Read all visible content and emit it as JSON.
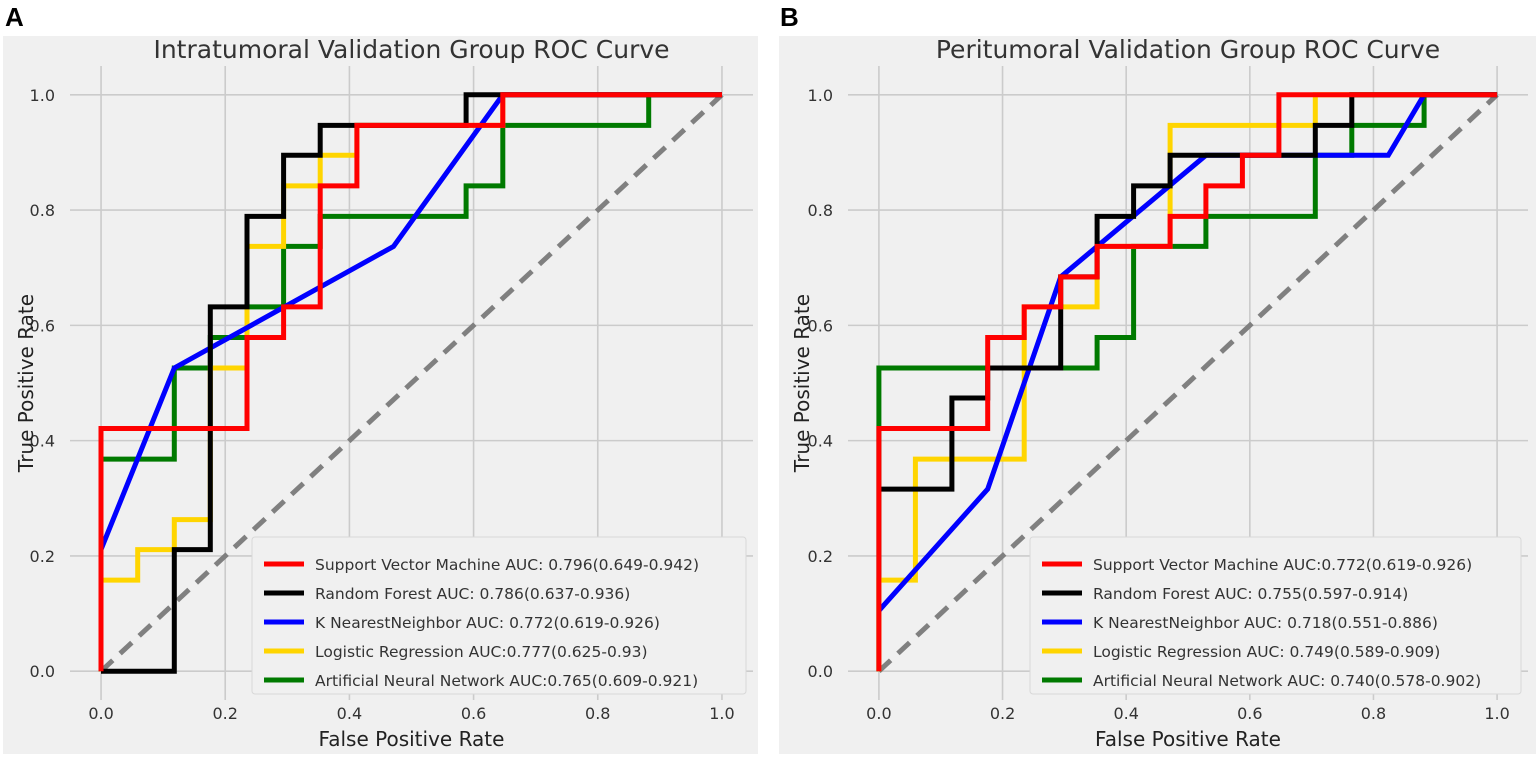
{
  "panels": [
    {
      "letter": "A"
    },
    {
      "letter": "B"
    }
  ],
  "colors": {
    "svm": "#ff0000",
    "rf": "#000000",
    "knn": "#0000ff",
    "lr": "#ffd500",
    "ann": "#007a00",
    "diagonal": "#808080",
    "plot_bg": "#f0f0f0",
    "grid": "#cbcbcb"
  },
  "chart_data": [
    {
      "type": "line",
      "title": "Intratumoral Validation Group ROC Curve",
      "xlabel": "False Positive Rate",
      "ylabel": "True Positive Rate",
      "xlim": [
        -0.05,
        1.05
      ],
      "ylim": [
        -0.05,
        1.05
      ],
      "xticks": [
        0.0,
        0.2,
        0.4,
        0.6,
        0.8,
        1.0
      ],
      "yticks": [
        0.0,
        0.2,
        0.4,
        0.6,
        0.8,
        1.0
      ],
      "xtick_labels": [
        "0.0",
        "0.2",
        "0.4",
        "0.6",
        "0.8",
        "1.0"
      ],
      "ytick_labels": [
        "0.0",
        "0.2",
        "0.4",
        "0.6",
        "0.8",
        "1.0"
      ],
      "grid": true,
      "legend_position": "bottom-right",
      "diagonal": {
        "x": [
          0,
          1
        ],
        "y": [
          0,
          1
        ]
      },
      "series": [
        {
          "key": "svm",
          "name": "Support Vector Machine AUC: 0.796(0.649-0.942)",
          "x": [
            0,
            0,
            0.235,
            0.235,
            0.294,
            0.294,
            0.353,
            0.353,
            0.412,
            0.412,
            0.647,
            0.647,
            1.0
          ],
          "y": [
            0,
            0.421,
            0.421,
            0.579,
            0.579,
            0.632,
            0.632,
            0.842,
            0.842,
            0.947,
            0.947,
            1.0,
            1.0
          ]
        },
        {
          "key": "rf",
          "name": "Random Forest AUC: 0.786(0.637-0.936)",
          "x": [
            0,
            0.118,
            0.118,
            0.176,
            0.176,
            0.235,
            0.235,
            0.294,
            0.294,
            0.353,
            0.353,
            0.412,
            0.412,
            0.588,
            0.588,
            1.0
          ],
          "y": [
            0,
            0,
            0.211,
            0.211,
            0.632,
            0.632,
            0.789,
            0.789,
            0.895,
            0.895,
            0.947,
            0.947,
            0.947,
            0.947,
            1.0,
            1.0
          ]
        },
        {
          "key": "knn",
          "name": "K NearestNeighbor AUC: 0.772(0.619-0.926)",
          "x": [
            0,
            0.118,
            0.471,
            0.647,
            1.0
          ],
          "y": [
            0.211,
            0.526,
            0.737,
            1.0,
            1.0
          ]
        },
        {
          "key": "lr",
          "name": "Logistic Regression AUC:0.777(0.625-0.93)",
          "x": [
            0,
            0,
            0.059,
            0.059,
            0.118,
            0.118,
            0.176,
            0.176,
            0.235,
            0.235,
            0.294,
            0.294,
            0.353,
            0.353,
            0.412,
            0.412,
            0.647,
            0.647,
            1.0
          ],
          "y": [
            0,
            0.158,
            0.158,
            0.211,
            0.211,
            0.263,
            0.263,
            0.526,
            0.526,
            0.737,
            0.737,
            0.842,
            0.842,
            0.895,
            0.895,
            0.947,
            0.947,
            1.0,
            1.0
          ]
        },
        {
          "key": "ann",
          "name": "Artificial Neural Network AUC:0.765(0.609-0.921)",
          "x": [
            0,
            0,
            0.118,
            0.118,
            0.176,
            0.176,
            0.235,
            0.235,
            0.294,
            0.294,
            0.353,
            0.353,
            0.588,
            0.588,
            0.647,
            0.647,
            0.882,
            0.882,
            1.0
          ],
          "y": [
            0,
            0.368,
            0.368,
            0.526,
            0.526,
            0.579,
            0.579,
            0.632,
            0.632,
            0.737,
            0.737,
            0.789,
            0.789,
            0.842,
            0.842,
            0.947,
            0.947,
            1.0,
            1.0
          ]
        }
      ]
    },
    {
      "type": "line",
      "title": "Peritumoral Validation Group ROC Curve",
      "xlabel": "False Positive Rate",
      "ylabel": "True Positive Rate",
      "xlim": [
        -0.05,
        1.05
      ],
      "ylim": [
        -0.05,
        1.05
      ],
      "xticks": [
        0.0,
        0.2,
        0.4,
        0.6,
        0.8,
        1.0
      ],
      "yticks": [
        0.0,
        0.2,
        0.4,
        0.6,
        0.8,
        1.0
      ],
      "xtick_labels": [
        "0.0",
        "0.2",
        "0.4",
        "0.6",
        "0.8",
        "1.0"
      ],
      "ytick_labels": [
        "0.0",
        "0.2",
        "0.4",
        "0.6",
        "0.8",
        "1.0"
      ],
      "grid": true,
      "legend_position": "bottom-right",
      "diagonal": {
        "x": [
          0,
          1
        ],
        "y": [
          0,
          1
        ]
      },
      "series": [
        {
          "key": "svm",
          "name": "Support Vector Machine AUC:0.772(0.619-0.926)",
          "x": [
            0,
            0,
            0.176,
            0.176,
            0.235,
            0.235,
            0.294,
            0.294,
            0.353,
            0.353,
            0.412,
            0.412,
            0.471,
            0.471,
            0.529,
            0.529,
            0.588,
            0.588,
            0.647,
            0.647,
            0.706,
            0.706,
            1.0
          ],
          "y": [
            0,
            0.421,
            0.421,
            0.579,
            0.579,
            0.632,
            0.632,
            0.684,
            0.684,
            0.737,
            0.737,
            0.737,
            0.737,
            0.789,
            0.789,
            0.842,
            0.842,
            0.895,
            0.895,
            1.0,
            1.0,
            1.0,
            1.0
          ]
        },
        {
          "key": "rf",
          "name": "Random Forest AUC: 0.755(0.597-0.914)",
          "x": [
            0,
            0.059,
            0.059,
            0.118,
            0.118,
            0.176,
            0.176,
            0.294,
            0.294,
            0.353,
            0.353,
            0.412,
            0.412,
            0.471,
            0.471,
            0.706,
            0.706,
            0.765,
            0.765,
            1.0
          ],
          "y": [
            0.316,
            0.316,
            0.316,
            0.316,
            0.474,
            0.474,
            0.526,
            0.526,
            0.684,
            0.684,
            0.789,
            0.789,
            0.842,
            0.842,
            0.895,
            0.895,
            0.947,
            0.947,
            1.0,
            1.0
          ]
        },
        {
          "key": "knn",
          "name": "K NearestNeighbor AUC: 0.718(0.551-0.886)",
          "x": [
            0,
            0.176,
            0.294,
            0.353,
            0.529,
            0.824,
            0.882,
            1.0
          ],
          "y": [
            0.105,
            0.316,
            0.684,
            0.737,
            0.895,
            0.895,
            1.0,
            1.0
          ]
        },
        {
          "key": "lr",
          "name": "Logistic Regression AUC: 0.749(0.589-0.909)",
          "x": [
            0,
            0,
            0.059,
            0.059,
            0.235,
            0.235,
            0.353,
            0.353,
            0.471,
            0.471,
            0.706,
            0.706,
            1.0
          ],
          "y": [
            0,
            0.158,
            0.158,
            0.368,
            0.368,
            0.632,
            0.632,
            0.737,
            0.737,
            0.947,
            0.947,
            1.0,
            1.0
          ]
        },
        {
          "key": "ann",
          "name": "Artificial Neural Network AUC: 0.740(0.578-0.902)",
          "x": [
            0,
            0,
            0.353,
            0.353,
            0.412,
            0.412,
            0.529,
            0.529,
            0.706,
            0.706,
            0.765,
            0.765,
            0.882,
            0.882,
            1.0
          ],
          "y": [
            0,
            0.526,
            0.526,
            0.579,
            0.579,
            0.737,
            0.737,
            0.789,
            0.789,
            0.895,
            0.895,
            0.947,
            0.947,
            1.0,
            1.0
          ]
        }
      ]
    }
  ]
}
